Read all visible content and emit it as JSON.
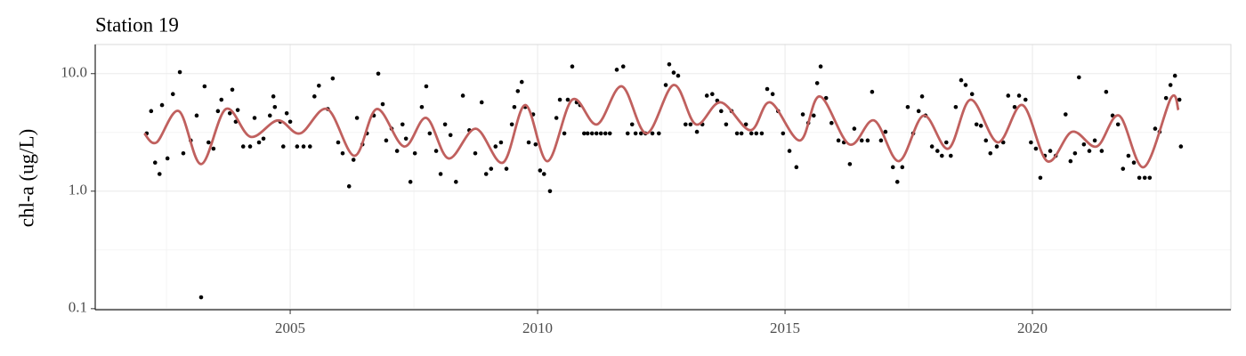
{
  "chart_data": {
    "type": "scatter",
    "title": "Station 19",
    "y_label": "chl-a (ug/L)",
    "log_y": true,
    "grid": true,
    "xlim": [
      2001.06,
      2024.01
    ],
    "ylim": [
      0.098,
      17.7
    ],
    "xticks": [
      2005,
      2010,
      2015,
      2020
    ],
    "x_minor_ticks": [
      2002.5,
      2007.5,
      2012.5,
      2017.5,
      2022.5
    ],
    "yticks": [
      {
        "value": 0.1,
        "label": "0.1"
      },
      {
        "value": 1,
        "label": "1.0"
      },
      {
        "value": 10,
        "label": "10.0"
      }
    ],
    "y_minor_ticks": [
      0.316,
      3.16
    ],
    "points": {
      "color": "#000000",
      "x": [
        2002.1,
        2002.19,
        2002.27,
        2002.36,
        2002.41,
        2002.52,
        2002.63,
        2002.77,
        2002.84,
        2002.99,
        2003.11,
        2003.2,
        2003.27,
        2003.35,
        2003.45,
        2003.54,
        2003.61,
        2003.78,
        2003.83,
        2003.9,
        2003.94,
        2004.05,
        2004.19,
        2004.28,
        2004.37,
        2004.46,
        2004.59,
        2004.66,
        2004.69,
        2004.8,
        2004.86,
        2004.93,
        2005.0,
        2005.14,
        2005.27,
        2005.4,
        2005.49,
        2005.58,
        2005.76,
        2005.86,
        2005.97,
        2006.06,
        2006.19,
        2006.28,
        2006.35,
        2006.46,
        2006.55,
        2006.69,
        2006.78,
        2006.87,
        2006.94,
        2007.05,
        2007.16,
        2007.27,
        2007.34,
        2007.43,
        2007.52,
        2007.66,
        2007.75,
        2007.82,
        2007.95,
        2008.04,
        2008.13,
        2008.24,
        2008.35,
        2008.49,
        2008.62,
        2008.74,
        2008.87,
        2008.96,
        2009.06,
        2009.15,
        2009.26,
        2009.37,
        2009.48,
        2009.53,
        2009.6,
        2009.68,
        2009.75,
        2009.82,
        2009.91,
        2009.96,
        2010.05,
        2010.13,
        2010.25,
        2010.38,
        2010.45,
        2010.54,
        2010.61,
        2010.7,
        2010.79,
        2010.86,
        2010.94,
        2011.01,
        2011.1,
        2011.19,
        2011.28,
        2011.37,
        2011.46,
        2011.6,
        2011.73,
        2011.82,
        2011.91,
        2011.98,
        2012.09,
        2012.18,
        2012.32,
        2012.45,
        2012.59,
        2012.66,
        2012.75,
        2012.84,
        2012.99,
        2013.09,
        2013.22,
        2013.33,
        2013.42,
        2013.53,
        2013.63,
        2013.71,
        2013.81,
        2013.92,
        2014.03,
        2014.12,
        2014.21,
        2014.32,
        2014.42,
        2014.53,
        2014.64,
        2014.75,
        2014.86,
        2014.96,
        2015.09,
        2015.23,
        2015.36,
        2015.47,
        2015.58,
        2015.65,
        2015.72,
        2015.83,
        2015.94,
        2016.08,
        2016.19,
        2016.31,
        2016.4,
        2016.55,
        2016.67,
        2016.76,
        2016.94,
        2017.03,
        2017.18,
        2017.27,
        2017.37,
        2017.48,
        2017.59,
        2017.7,
        2017.77,
        2017.84,
        2017.97,
        2018.08,
        2018.17,
        2018.26,
        2018.35,
        2018.45,
        2018.56,
        2018.65,
        2018.78,
        2018.87,
        2018.96,
        2019.06,
        2019.15,
        2019.28,
        2019.41,
        2019.51,
        2019.64,
        2019.73,
        2019.86,
        2019.97,
        2020.07,
        2020.16,
        2020.25,
        2020.36,
        2020.47,
        2020.67,
        2020.77,
        2020.86,
        2020.94,
        2021.04,
        2021.15,
        2021.26,
        2021.4,
        2021.49,
        2021.62,
        2021.73,
        2021.83,
        2021.94,
        2022.05,
        2022.16,
        2022.27,
        2022.37,
        2022.48,
        2022.57,
        2022.7,
        2022.79,
        2022.88,
        2022.97,
        2023.0
      ],
      "values": [
        3.1,
        4.8,
        1.75,
        1.4,
        5.4,
        1.9,
        6.7,
        10.3,
        2.1,
        2.7,
        4.4,
        0.125,
        7.8,
        2.6,
        2.3,
        4.8,
        6.0,
        4.6,
        7.3,
        3.9,
        4.9,
        2.4,
        2.4,
        4.2,
        2.6,
        2.8,
        4.4,
        6.4,
        5.2,
        3.9,
        2.4,
        4.6,
        3.9,
        2.4,
        2.4,
        2.4,
        6.4,
        7.9,
        5.0,
        9.1,
        2.6,
        2.1,
        1.1,
        1.85,
        4.2,
        2.5,
        3.1,
        4.4,
        10.0,
        5.5,
        2.7,
        3.4,
        2.2,
        3.7,
        2.8,
        1.2,
        2.1,
        5.2,
        7.8,
        3.1,
        2.2,
        1.4,
        3.7,
        3.0,
        1.2,
        6.5,
        3.3,
        2.1,
        5.7,
        1.4,
        1.55,
        2.4,
        2.6,
        1.55,
        3.7,
        5.2,
        7.1,
        8.5,
        5.2,
        2.6,
        4.5,
        2.5,
        1.5,
        1.4,
        1.0,
        4.2,
        6.0,
        3.1,
        6.0,
        11.5,
        5.7,
        5.4,
        3.1,
        3.1,
        3.1,
        3.1,
        3.1,
        3.1,
        3.1,
        10.8,
        11.5,
        3.1,
        3.7,
        3.1,
        3.1,
        3.1,
        3.1,
        3.1,
        8.0,
        12.0,
        10.2,
        9.6,
        3.7,
        3.7,
        3.2,
        3.7,
        6.5,
        6.7,
        5.9,
        4.8,
        3.7,
        4.8,
        3.1,
        3.1,
        3.7,
        3.1,
        3.1,
        3.1,
        7.4,
        6.7,
        4.8,
        3.1,
        2.2,
        1.6,
        4.5,
        3.8,
        4.4,
        8.3,
        11.5,
        6.2,
        3.8,
        2.7,
        2.6,
        1.7,
        3.4,
        2.7,
        2.7,
        7.0,
        2.7,
        3.2,
        1.6,
        1.2,
        1.6,
        5.2,
        3.1,
        4.8,
        6.4,
        4.4,
        2.4,
        2.2,
        2.0,
        2.6,
        2.0,
        5.2,
        8.8,
        8.0,
        6.7,
        3.7,
        3.6,
        2.7,
        2.1,
        2.4,
        2.6,
        6.5,
        5.2,
        6.5,
        6.0,
        2.6,
        2.3,
        1.3,
        2.0,
        2.2,
        2.0,
        4.5,
        1.8,
        2.1,
        9.3,
        2.5,
        2.2,
        2.7,
        2.2,
        7.0,
        4.4,
        3.7,
        1.55,
        2.0,
        1.75,
        1.3,
        1.3,
        1.3,
        3.4,
        3.2,
        6.2,
        8.0,
        9.6,
        6.0,
        2.4
      ]
    },
    "trend": {
      "color": "#c0605e",
      "x": [
        2002.05,
        2002.3,
        2002.75,
        2003.2,
        2003.7,
        2004.2,
        2004.75,
        2005.2,
        2005.75,
        2006.3,
        2006.75,
        2007.3,
        2007.75,
        2008.2,
        2008.75,
        2009.3,
        2009.75,
        2010.2,
        2010.7,
        2011.2,
        2011.7,
        2012.2,
        2012.75,
        2013.2,
        2013.7,
        2014.3,
        2014.7,
        2015.3,
        2015.7,
        2016.3,
        2016.8,
        2017.3,
        2017.8,
        2018.3,
        2018.75,
        2019.3,
        2019.8,
        2020.3,
        2020.8,
        2021.3,
        2021.75,
        2022.25,
        2022.8,
        2022.95
      ],
      "values": [
        3.1,
        2.6,
        4.8,
        1.7,
        5.0,
        2.9,
        4.0,
        3.1,
        5.0,
        2.0,
        5.0,
        2.4,
        4.2,
        1.9,
        3.4,
        1.75,
        5.4,
        1.8,
        6.0,
        3.7,
        7.8,
        3.1,
        8.0,
        3.7,
        5.7,
        3.3,
        5.7,
        2.7,
        6.4,
        2.5,
        4.0,
        1.8,
        4.4,
        2.3,
        6.0,
        2.6,
        5.4,
        1.8,
        3.2,
        2.4,
        4.4,
        1.6,
        6.2,
        4.9
      ]
    }
  }
}
